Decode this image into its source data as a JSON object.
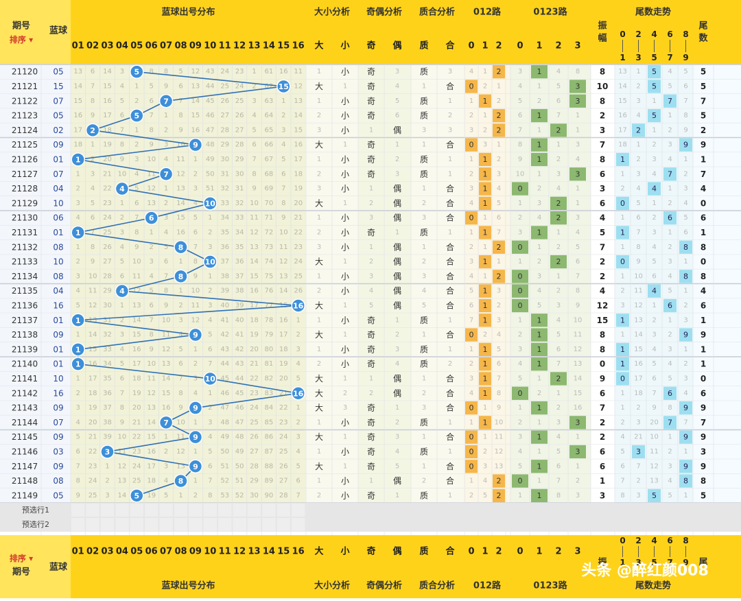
{
  "table": {
    "header_top": {
      "period_label": "期号",
      "sort_label": "排序",
      "blue_label": "蓝球",
      "blue_dist_title": "蓝球出号分布",
      "size_title": "大小分析",
      "parity_title": "奇偶分析",
      "prime_title": "质合分析",
      "r012_title": "012路",
      "r0123_title": "0123路",
      "amp_label": "振幅",
      "tail_trend_title": "尾数走势",
      "tail_num_label": "尾数"
    },
    "header_bottom": {
      "period_label": "期号",
      "sort_label": "排序",
      "blue_label": "蓝球",
      "blue_dist_title": "蓝球出号分布",
      "size_title": "大小分析",
      "parity_title": "奇偶分析",
      "prime_title": "质合分析",
      "r012_title": "012路",
      "r0123_title": "0123路",
      "amp_label": "振",
      "tail_trend_title": "尾数走势",
      "tail_num_label": "尾"
    },
    "blue_cols": [
      "01",
      "02",
      "03",
      "04",
      "05",
      "06",
      "07",
      "08",
      "09",
      "10",
      "11",
      "12",
      "13",
      "14",
      "15",
      "16"
    ],
    "size_cols": [
      "大",
      "小"
    ],
    "parity_cols": [
      "奇",
      "偶"
    ],
    "prime_cols": [
      "质",
      "合"
    ],
    "r012_cols": [
      "0",
      "1",
      "2"
    ],
    "r0123_cols": [
      "0",
      "1",
      "2",
      "3"
    ],
    "tail_cols": [
      "0|1",
      "2|3",
      "4|5",
      "6|7",
      "8|9"
    ],
    "preselect": [
      "预选行1",
      "预选行2"
    ],
    "watermark": "头条 @醉红颜008",
    "colors": {
      "header_yellow": "#ffd21a",
      "blue_ball": "#3d8fd9",
      "trend_line": "#2f6fb4",
      "orange_cell": "#f5b64a",
      "green_cell": "#8cb870",
      "cyan_cell": "#9ddff0",
      "title_text": "#333333"
    }
  },
  "chart_data": {
    "type": "table",
    "title": "蓝球出号分布",
    "columns": [
      "期号",
      "蓝球",
      "大小",
      "奇偶",
      "质合",
      "012路",
      "0123路",
      "振幅",
      "尾数"
    ],
    "rows": [
      {
        "period": "21120",
        "blue": 5,
        "amp": 8
      },
      {
        "period": "21121",
        "blue": 15,
        "amp": 10
      },
      {
        "period": "21122",
        "blue": 7,
        "amp": 8
      },
      {
        "period": "21123",
        "blue": 5,
        "amp": 2
      },
      {
        "period": "21124",
        "blue": 2,
        "amp": 3
      },
      {
        "period": "21125",
        "blue": 9,
        "amp": 7
      },
      {
        "period": "21126",
        "blue": 1,
        "amp": 8
      },
      {
        "period": "21127",
        "blue": 7,
        "amp": 6
      },
      {
        "period": "21128",
        "blue": 4,
        "amp": 3
      },
      {
        "period": "21129",
        "blue": 10,
        "amp": 6
      },
      {
        "period": "21130",
        "blue": 6,
        "amp": 4
      },
      {
        "period": "21131",
        "blue": 1,
        "amp": 5
      },
      {
        "period": "21132",
        "blue": 8,
        "amp": 7
      },
      {
        "period": "21133",
        "blue": 10,
        "amp": 2
      },
      {
        "period": "21134",
        "blue": 8,
        "amp": 2
      },
      {
        "period": "21135",
        "blue": 4,
        "amp": 4
      },
      {
        "period": "21136",
        "blue": 16,
        "amp": 12
      },
      {
        "period": "21137",
        "blue": 1,
        "amp": 15
      },
      {
        "period": "21138",
        "blue": 9,
        "amp": 8
      },
      {
        "period": "21139",
        "blue": 1,
        "amp": 8
      },
      {
        "period": "21140",
        "blue": 1,
        "amp": 0
      },
      {
        "period": "21141",
        "blue": 10,
        "amp": 9
      },
      {
        "period": "21142",
        "blue": 16,
        "amp": 6
      },
      {
        "period": "21143",
        "blue": 9,
        "amp": 7
      },
      {
        "period": "21144",
        "blue": 7,
        "amp": 2
      },
      {
        "period": "21145",
        "blue": 9,
        "amp": 2
      },
      {
        "period": "21146",
        "blue": 3,
        "amp": 6
      },
      {
        "period": "21147",
        "blue": 9,
        "amp": 6
      },
      {
        "period": "21148",
        "blue": 8,
        "amp": 1
      },
      {
        "period": "21149",
        "blue": 5,
        "amp": 3
      }
    ],
    "omission": [
      [
        13,
        6,
        14,
        3,
        null,
        8,
        8,
        5,
        12,
        43,
        24,
        23,
        1,
        61,
        16,
        11
      ],
      [
        14,
        7,
        15,
        4,
        1,
        5,
        9,
        6,
        13,
        44,
        25,
        24,
        2,
        62,
        null,
        12
      ],
      [
        15,
        8,
        16,
        5,
        2,
        6,
        null,
        7,
        14,
        45,
        26,
        25,
        3,
        63,
        1,
        13
      ],
      [
        16,
        9,
        17,
        6,
        null,
        7,
        1,
        8,
        15,
        46,
        27,
        26,
        4,
        64,
        2,
        14
      ],
      [
        17,
        null,
        18,
        7,
        1,
        8,
        2,
        9,
        16,
        47,
        28,
        27,
        5,
        65,
        3,
        15
      ],
      [
        18,
        1,
        19,
        8,
        2,
        9,
        3,
        10,
        null,
        48,
        29,
        28,
        6,
        66,
        4,
        16
      ],
      [
        null,
        2,
        20,
        9,
        3,
        10,
        4,
        11,
        1,
        49,
        30,
        29,
        7,
        67,
        5,
        17
      ],
      [
        1,
        3,
        21,
        10,
        4,
        11,
        null,
        12,
        2,
        50,
        31,
        30,
        8,
        68,
        6,
        18
      ],
      [
        2,
        4,
        22,
        null,
        5,
        12,
        1,
        13,
        3,
        51,
        32,
        31,
        9,
        69,
        7,
        19
      ],
      [
        3,
        5,
        23,
        1,
        6,
        13,
        2,
        14,
        4,
        null,
        33,
        32,
        10,
        70,
        8,
        20
      ],
      [
        4,
        6,
        24,
        2,
        7,
        null,
        3,
        15,
        5,
        1,
        34,
        33,
        11,
        71,
        9,
        21
      ],
      [
        null,
        7,
        25,
        3,
        8,
        1,
        4,
        16,
        6,
        2,
        35,
        34,
        12,
        72,
        10,
        22
      ],
      [
        1,
        8,
        26,
        4,
        9,
        2,
        5,
        null,
        7,
        3,
        36,
        35,
        13,
        73,
        11,
        23
      ],
      [
        2,
        9,
        27,
        5,
        10,
        3,
        6,
        1,
        8,
        null,
        37,
        36,
        14,
        74,
        12,
        24
      ],
      [
        3,
        10,
        28,
        6,
        11,
        4,
        7,
        null,
        9,
        1,
        38,
        37,
        15,
        75,
        13,
        25
      ],
      [
        4,
        11,
        29,
        null,
        12,
        5,
        8,
        1,
        10,
        2,
        39,
        38,
        16,
        76,
        14,
        26
      ],
      [
        5,
        12,
        30,
        1,
        13,
        6,
        9,
        2,
        11,
        3,
        40,
        39,
        17,
        77,
        15,
        null
      ],
      [
        null,
        13,
        31,
        2,
        14,
        7,
        10,
        3,
        12,
        4,
        41,
        40,
        18,
        78,
        16,
        1
      ],
      [
        1,
        14,
        32,
        3,
        15,
        8,
        11,
        4,
        null,
        5,
        42,
        41,
        19,
        79,
        17,
        2
      ],
      [
        null,
        15,
        33,
        4,
        16,
        9,
        12,
        5,
        1,
        6,
        43,
        42,
        20,
        80,
        18,
        3
      ],
      [
        null,
        16,
        34,
        5,
        17,
        10,
        13,
        6,
        2,
        7,
        44,
        43,
        21,
        81,
        19,
        4
      ],
      [
        1,
        17,
        35,
        6,
        18,
        11,
        14,
        7,
        3,
        null,
        45,
        44,
        22,
        82,
        20,
        5
      ],
      [
        2,
        18,
        36,
        7,
        19,
        12,
        15,
        8,
        4,
        1,
        46,
        45,
        23,
        83,
        21,
        null
      ],
      [
        3,
        19,
        37,
        8,
        20,
        13,
        16,
        9,
        null,
        2,
        47,
        46,
        24,
        84,
        22,
        1
      ],
      [
        4,
        20,
        38,
        9,
        21,
        14,
        null,
        10,
        1,
        3,
        48,
        47,
        25,
        85,
        23,
        2
      ],
      [
        5,
        21,
        39,
        10,
        22,
        15,
        1,
        11,
        null,
        4,
        49,
        48,
        26,
        86,
        24,
        3
      ],
      [
        6,
        22,
        null,
        11,
        23,
        16,
        2,
        12,
        1,
        5,
        50,
        49,
        27,
        87,
        25,
        4
      ],
      [
        7,
        23,
        1,
        12,
        24,
        17,
        3,
        13,
        null,
        6,
        51,
        50,
        28,
        88,
        26,
        5
      ],
      [
        8,
        24,
        2,
        13,
        25,
        18,
        4,
        null,
        1,
        7,
        52,
        51,
        29,
        89,
        27,
        6
      ],
      [
        9,
        25,
        3,
        14,
        null,
        19,
        5,
        1,
        2,
        8,
        53,
        52,
        30,
        90,
        28,
        7
      ]
    ],
    "size_parity_prime": [
      [
        "1",
        "小",
        "奇",
        "3",
        "质",
        "3"
      ],
      [
        "大",
        "1",
        "奇",
        "4",
        "1",
        "合"
      ],
      [
        "1",
        "小",
        "奇",
        "5",
        "质",
        "1"
      ],
      [
        "2",
        "小",
        "奇",
        "6",
        "质",
        "2"
      ],
      [
        "3",
        "小",
        "1",
        "偶",
        "3",
        "3"
      ],
      [
        "大",
        "1",
        "奇",
        "1",
        "1",
        "合"
      ],
      [
        "1",
        "小",
        "奇",
        "2",
        "质",
        "1"
      ],
      [
        "2",
        "小",
        "奇",
        "3",
        "质",
        "1"
      ],
      [
        "3",
        "小",
        "1",
        "偶",
        "1",
        "合"
      ],
      [
        "大",
        "1",
        "2",
        "偶",
        "2",
        "合"
      ],
      [
        "1",
        "小",
        "3",
        "偶",
        "3",
        "合"
      ],
      [
        "2",
        "小",
        "奇",
        "1",
        "质",
        "1"
      ],
      [
        "3",
        "小",
        "1",
        "偶",
        "1",
        "合"
      ],
      [
        "大",
        "1",
        "2",
        "偶",
        "2",
        "合"
      ],
      [
        "1",
        "小",
        "3",
        "偶",
        "3",
        "合"
      ],
      [
        "2",
        "小",
        "4",
        "偶",
        "4",
        "合"
      ],
      [
        "大",
        "1",
        "5",
        "偶",
        "5",
        "合"
      ],
      [
        "1",
        "小",
        "奇",
        "1",
        "质",
        "1"
      ],
      [
        "大",
        "1",
        "奇",
        "2",
        "1",
        "合"
      ],
      [
        "1",
        "小",
        "奇",
        "3",
        "质",
        "1"
      ],
      [
        "2",
        "小",
        "奇",
        "4",
        "质",
        "2"
      ],
      [
        "大",
        "1",
        "1",
        "偶",
        "1",
        "合"
      ],
      [
        "大",
        "2",
        "2",
        "偶",
        "2",
        "合"
      ],
      [
        "大",
        "3",
        "奇",
        "1",
        "3",
        "合"
      ],
      [
        "1",
        "小",
        "奇",
        "2",
        "质",
        "1"
      ],
      [
        "大",
        "1",
        "奇",
        "3",
        "1",
        "合"
      ],
      [
        "1",
        "小",
        "奇",
        "4",
        "质",
        "1"
      ],
      [
        "大",
        "1",
        "奇",
        "5",
        "1",
        "合"
      ],
      [
        "1",
        "小",
        "1",
        "偶",
        "2",
        "合"
      ],
      [
        "2",
        "小",
        "奇",
        "1",
        "质",
        "1"
      ]
    ],
    "r012": [
      [
        4,
        1,
        2
      ],
      [
        0,
        2,
        1
      ],
      [
        1,
        1,
        2
      ],
      [
        2,
        1,
        2
      ],
      [
        3,
        2,
        2
      ],
      [
        0,
        3,
        1
      ],
      [
        1,
        1,
        2
      ],
      [
        2,
        1,
        3
      ],
      [
        3,
        1,
        4
      ],
      [
        4,
        1,
        5
      ],
      [
        0,
        1,
        6
      ],
      [
        1,
        1,
        7
      ],
      [
        2,
        1,
        2
      ],
      [
        3,
        1,
        1
      ],
      [
        4,
        1,
        2
      ],
      [
        5,
        1,
        3
      ],
      [
        6,
        1,
        2
      ],
      [
        7,
        1,
        3
      ],
      [
        0,
        2,
        4
      ],
      [
        1,
        1,
        5
      ],
      [
        2,
        1,
        6
      ],
      [
        3,
        1,
        7
      ],
      [
        4,
        1,
        8
      ],
      [
        0,
        1,
        9
      ],
      [
        1,
        1,
        10
      ],
      [
        0,
        1,
        11
      ],
      [
        0,
        2,
        12
      ],
      [
        0,
        3,
        13
      ],
      [
        1,
        4,
        2
      ],
      [
        2,
        5,
        2
      ]
    ],
    "r012_hit": [
      2,
      0,
      1,
      2,
      2,
      0,
      1,
      1,
      1,
      1,
      0,
      1,
      2,
      1,
      2,
      1,
      1,
      1,
      0,
      1,
      1,
      1,
      1,
      0,
      1,
      0,
      0,
      0,
      2,
      2
    ],
    "r0123": [
      [
        3,
        1,
        4,
        8
      ],
      [
        4,
        1,
        5,
        3
      ],
      [
        5,
        2,
        6,
        3
      ],
      [
        6,
        1,
        7,
        1
      ],
      [
        7,
        1,
        2,
        1
      ],
      [
        8,
        1,
        1,
        3
      ],
      [
        9,
        1,
        2,
        4
      ],
      [
        10,
        1,
        3,
        3
      ],
      [
        0,
        2,
        4,
        1
      ],
      [
        1,
        3,
        2,
        1
      ],
      [
        2,
        4,
        2,
        3
      ],
      [
        3,
        1,
        1,
        4
      ],
      [
        0,
        1,
        2,
        5
      ],
      [
        1,
        2,
        2,
        6
      ],
      [
        0,
        3,
        1,
        7
      ],
      [
        0,
        4,
        2,
        8
      ],
      [
        0,
        5,
        3,
        9
      ],
      [
        1,
        1,
        4,
        10
      ],
      [
        2,
        1,
        5,
        11
      ],
      [
        3,
        1,
        6,
        12
      ],
      [
        4,
        1,
        7,
        13
      ],
      [
        5,
        1,
        2,
        14
      ],
      [
        0,
        2,
        1,
        15
      ],
      [
        1,
        1,
        2,
        16
      ],
      [
        2,
        1,
        3,
        3
      ],
      [
        3,
        1,
        4,
        1
      ],
      [
        4,
        1,
        5,
        3
      ],
      [
        5,
        1,
        6,
        1
      ],
      [
        0,
        1,
        7,
        2
      ],
      [
        1,
        1,
        8,
        3
      ]
    ],
    "r0123_hit": [
      1,
      3,
      3,
      1,
      2,
      1,
      1,
      3,
      0,
      2,
      2,
      1,
      0,
      2,
      0,
      0,
      0,
      1,
      1,
      1,
      1,
      2,
      0,
      1,
      3,
      1,
      3,
      1,
      0,
      1
    ],
    "tails": [
      [
        13,
        1,
        5,
        4,
        5
      ],
      [
        14,
        2,
        5,
        5,
        6
      ],
      [
        15,
        3,
        1,
        7,
        7
      ],
      [
        16,
        4,
        5,
        1,
        8
      ],
      [
        17,
        2,
        1,
        2,
        9
      ],
      [
        18,
        1,
        2,
        3,
        9
      ],
      [
        1,
        2,
        3,
        4,
        1
      ],
      [
        1,
        3,
        4,
        7,
        2
      ],
      [
        2,
        4,
        4,
        1,
        3
      ],
      [
        0,
        5,
        1,
        2,
        4
      ],
      [
        1,
        6,
        2,
        6,
        5
      ],
      [
        1,
        7,
        3,
        1,
        6
      ],
      [
        1,
        8,
        4,
        2,
        8
      ],
      [
        0,
        9,
        5,
        3,
        1
      ],
      [
        1,
        10,
        6,
        4,
        8
      ],
      [
        2,
        11,
        4,
        5,
        1
      ],
      [
        3,
        12,
        1,
        6,
        2
      ],
      [
        1,
        13,
        2,
        1,
        3
      ],
      [
        1,
        14,
        3,
        2,
        9
      ],
      [
        1,
        15,
        4,
        3,
        1
      ],
      [
        1,
        16,
        5,
        4,
        2
      ],
      [
        0,
        17,
        6,
        5,
        3
      ],
      [
        1,
        18,
        7,
        6,
        4
      ],
      [
        1,
        2,
        9,
        8,
        9
      ],
      [
        2,
        3,
        20,
        9,
        7
      ],
      [
        4,
        21,
        10,
        1,
        9
      ],
      [
        5,
        3,
        11,
        2,
        1
      ],
      [
        6,
        7,
        12,
        3,
        9
      ],
      [
        7,
        2,
        13,
        4,
        8
      ],
      [
        8,
        3,
        5,
        5,
        1
      ]
    ],
    "tails_hit": [
      2,
      2,
      3,
      2,
      1,
      4,
      0,
      3,
      2,
      0,
      3,
      0,
      4,
      0,
      4,
      2,
      3,
      0,
      4,
      0,
      0,
      0,
      3,
      4,
      3,
      4,
      1,
      4,
      4,
      2
    ]
  }
}
